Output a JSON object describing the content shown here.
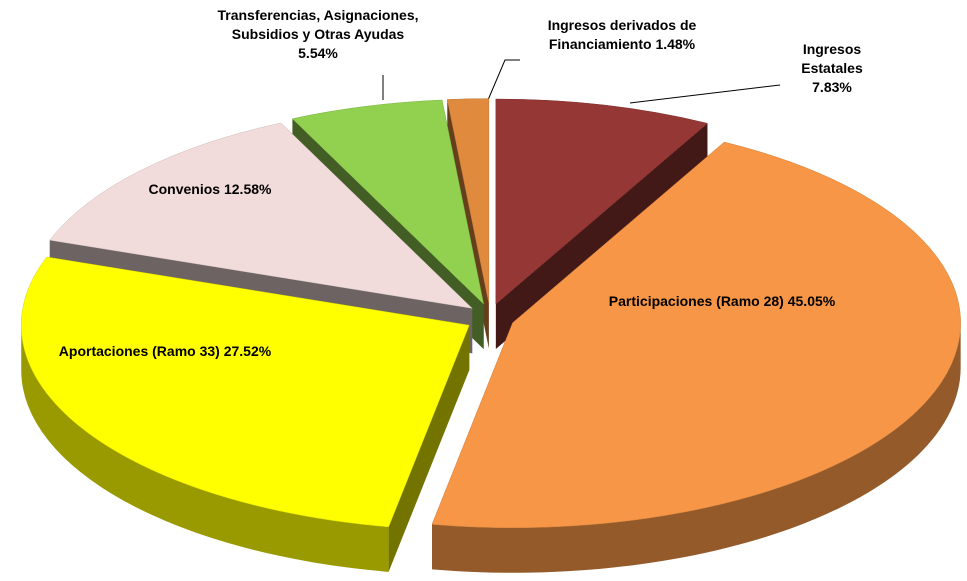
{
  "chart_data": {
    "type": "pie3d",
    "categories": [
      "Ingresos Estatales",
      "Participaciones (Ramo 28)",
      "Aportaciones (Ramo 33)",
      "Convenios",
      "Transferencias, Asignaciones, Subsidios y Otras Ayudas",
      "Ingresos derivados de Financiamiento"
    ],
    "values": [
      7.83,
      45.05,
      27.52,
      12.58,
      5.54,
      1.48
    ],
    "value_labels": [
      "7.83%",
      "45.05%",
      "27.52%",
      "12.58%",
      "5.54%",
      "1.48%"
    ],
    "colors": [
      "#953735",
      "#f79646",
      "#ffff00",
      "#f2dcdb",
      "#92d050",
      "#e08a3e"
    ],
    "start_angle": 0,
    "direction": "clockwise"
  }
}
